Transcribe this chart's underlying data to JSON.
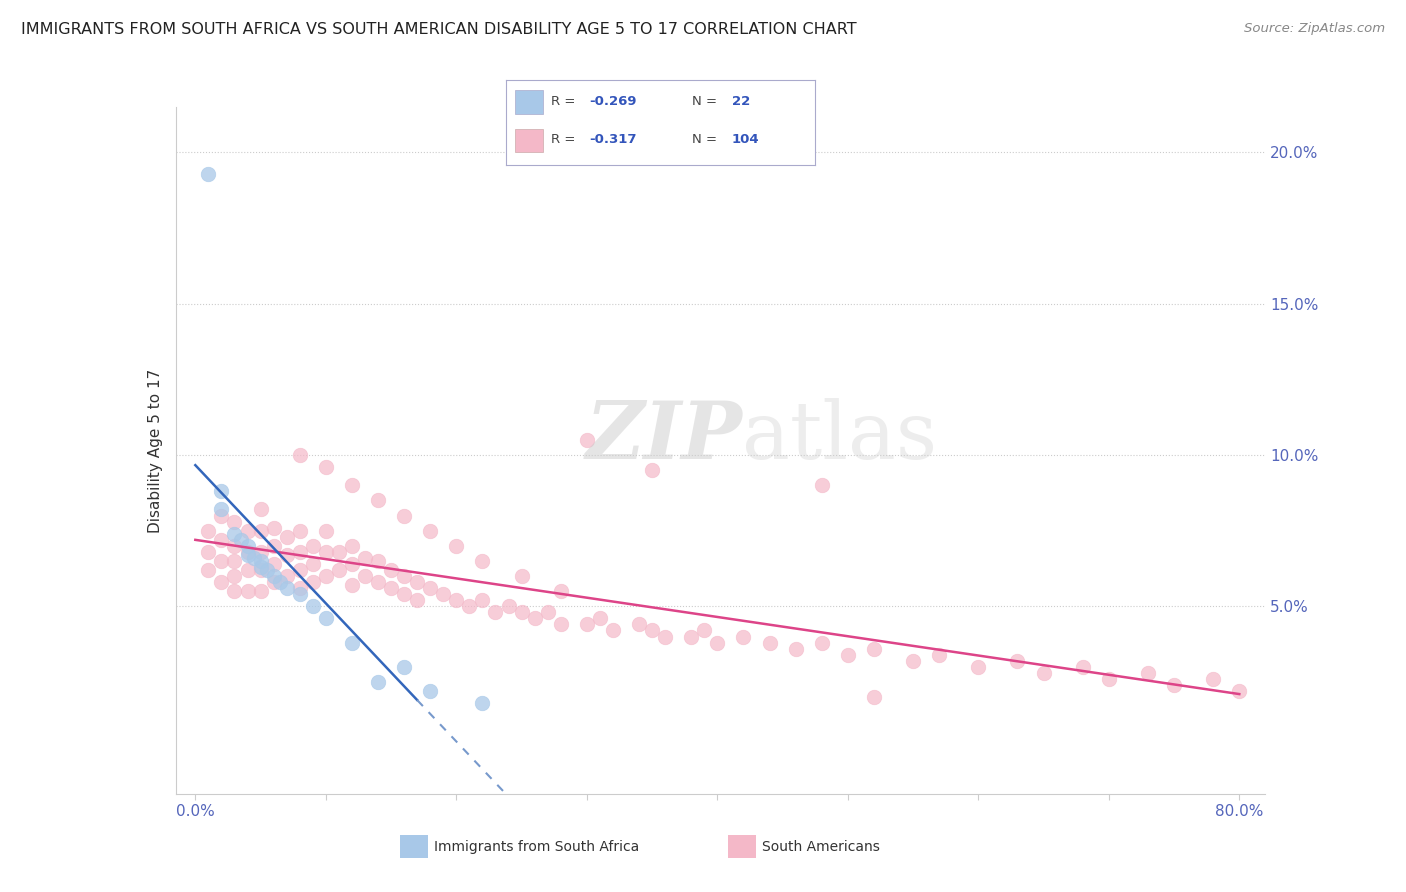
{
  "title": "IMMIGRANTS FROM SOUTH AFRICA VS SOUTH AMERICAN DISABILITY AGE 5 TO 17 CORRELATION CHART",
  "source": "Source: ZipAtlas.com",
  "ylabel": "Disability Age 5 to 17",
  "color_africa": "#a8c8e8",
  "color_sa": "#f4b8c8",
  "color_africa_line": "#3366bb",
  "color_sa_line": "#dd4488",
  "color_africa_line_dash": "#7799cc",
  "yticks": [
    0.0,
    0.05,
    0.1,
    0.15,
    0.2
  ],
  "ytick_labels": [
    "",
    "5.0%",
    "10.0%",
    "15.0%",
    "20.0%"
  ],
  "xticks": [
    0.0,
    0.1,
    0.2,
    0.3,
    0.4,
    0.5,
    0.6,
    0.7,
    0.8
  ],
  "xtick_labels": [
    "0.0%",
    "",
    "",
    "",
    "",
    "",
    "",
    "",
    "80.0%"
  ],
  "legend_items": [
    {
      "color": "#a8c8e8",
      "r": "-0.269",
      "n": "22"
    },
    {
      "color": "#f4b8c8",
      "r": "-0.317",
      "n": "104"
    }
  ],
  "x_africa": [
    0.01,
    0.02,
    0.02,
    0.03,
    0.035,
    0.04,
    0.04,
    0.045,
    0.05,
    0.05,
    0.055,
    0.06,
    0.065,
    0.07,
    0.08,
    0.09,
    0.1,
    0.12,
    0.14,
    0.16,
    0.18,
    0.22
  ],
  "y_africa": [
    0.193,
    0.088,
    0.082,
    0.074,
    0.072,
    0.07,
    0.067,
    0.066,
    0.065,
    0.063,
    0.062,
    0.06,
    0.058,
    0.056,
    0.054,
    0.05,
    0.046,
    0.038,
    0.025,
    0.03,
    0.022,
    0.018
  ],
  "x_sa": [
    0.01,
    0.01,
    0.01,
    0.02,
    0.02,
    0.02,
    0.02,
    0.03,
    0.03,
    0.03,
    0.03,
    0.03,
    0.04,
    0.04,
    0.04,
    0.04,
    0.05,
    0.05,
    0.05,
    0.05,
    0.05,
    0.06,
    0.06,
    0.06,
    0.06,
    0.07,
    0.07,
    0.07,
    0.08,
    0.08,
    0.08,
    0.08,
    0.09,
    0.09,
    0.09,
    0.1,
    0.1,
    0.1,
    0.11,
    0.11,
    0.12,
    0.12,
    0.12,
    0.13,
    0.13,
    0.14,
    0.14,
    0.15,
    0.15,
    0.16,
    0.16,
    0.17,
    0.17,
    0.18,
    0.19,
    0.2,
    0.21,
    0.22,
    0.23,
    0.24,
    0.25,
    0.26,
    0.27,
    0.28,
    0.3,
    0.31,
    0.32,
    0.34,
    0.35,
    0.36,
    0.38,
    0.39,
    0.4,
    0.42,
    0.44,
    0.46,
    0.48,
    0.5,
    0.52,
    0.55,
    0.57,
    0.6,
    0.63,
    0.65,
    0.68,
    0.7,
    0.73,
    0.75,
    0.78,
    0.8,
    0.3,
    0.35,
    0.48,
    0.52,
    0.08,
    0.1,
    0.12,
    0.14,
    0.16,
    0.18,
    0.2,
    0.22,
    0.25,
    0.28
  ],
  "y_sa": [
    0.075,
    0.068,
    0.062,
    0.08,
    0.072,
    0.065,
    0.058,
    0.078,
    0.07,
    0.065,
    0.06,
    0.055,
    0.075,
    0.068,
    0.062,
    0.055,
    0.082,
    0.075,
    0.068,
    0.062,
    0.055,
    0.076,
    0.07,
    0.064,
    0.058,
    0.073,
    0.067,
    0.06,
    0.075,
    0.068,
    0.062,
    0.056,
    0.07,
    0.064,
    0.058,
    0.075,
    0.068,
    0.06,
    0.068,
    0.062,
    0.07,
    0.064,
    0.057,
    0.066,
    0.06,
    0.065,
    0.058,
    0.062,
    0.056,
    0.06,
    0.054,
    0.058,
    0.052,
    0.056,
    0.054,
    0.052,
    0.05,
    0.052,
    0.048,
    0.05,
    0.048,
    0.046,
    0.048,
    0.044,
    0.044,
    0.046,
    0.042,
    0.044,
    0.042,
    0.04,
    0.04,
    0.042,
    0.038,
    0.04,
    0.038,
    0.036,
    0.038,
    0.034,
    0.036,
    0.032,
    0.034,
    0.03,
    0.032,
    0.028,
    0.03,
    0.026,
    0.028,
    0.024,
    0.026,
    0.022,
    0.105,
    0.095,
    0.09,
    0.02,
    0.1,
    0.096,
    0.09,
    0.085,
    0.08,
    0.075,
    0.07,
    0.065,
    0.06,
    0.055
  ]
}
